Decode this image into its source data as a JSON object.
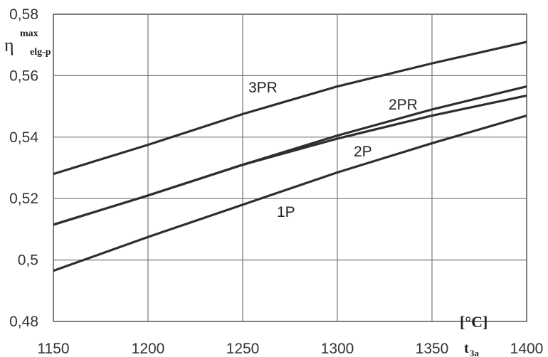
{
  "chart_data": {
    "type": "line",
    "x": [
      1150,
      1200,
      1250,
      1300,
      1350,
      1400
    ],
    "xlim": [
      1150,
      1400
    ],
    "ylim": [
      0.48,
      0.58
    ],
    "x_ticks": [
      "1150",
      "1200",
      "1250",
      "1300",
      "1350",
      "1400"
    ],
    "y_ticks": [
      "0,48",
      "0,5",
      "0,52",
      "0,54",
      "0,56",
      "0,58"
    ],
    "y_tick_values": [
      0.48,
      0.5,
      0.52,
      0.54,
      0.56,
      0.58
    ],
    "grid": true,
    "ylabel": {
      "main": "η",
      "sup": "max",
      "sub": "elg-p"
    },
    "xlabel": {
      "unit": "[°C]",
      "main": "t",
      "sub": "3a"
    },
    "series": [
      {
        "name": "3PR",
        "values": [
          0.528,
          0.5375,
          0.5475,
          0.5565,
          0.564,
          0.571
        ]
      },
      {
        "name": "2PR",
        "values": [
          0.5115,
          0.521,
          0.531,
          0.5405,
          0.549,
          0.5565
        ]
      },
      {
        "name": "2P",
        "values": [
          0.5115,
          0.521,
          0.531,
          0.5395,
          0.547,
          0.5535
        ]
      },
      {
        "name": "1P",
        "values": [
          0.4965,
          0.5075,
          0.518,
          0.5285,
          0.538,
          0.547
        ]
      }
    ]
  }
}
